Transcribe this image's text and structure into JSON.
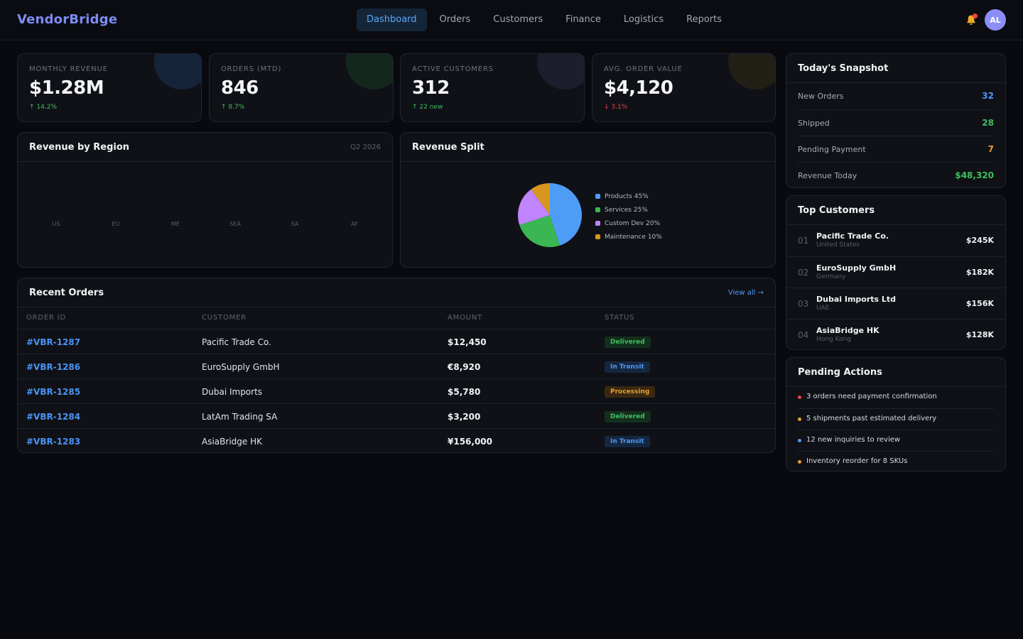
{
  "app": {
    "name": "VendorBridge"
  },
  "nav": {
    "items": [
      {
        "label": "Dashboard",
        "active": true
      },
      {
        "label": "Orders"
      },
      {
        "label": "Customers"
      },
      {
        "label": "Finance"
      },
      {
        "label": "Logistics"
      },
      {
        "label": "Reports"
      }
    ]
  },
  "user": {
    "initials": "AL"
  },
  "kpis": [
    {
      "label": "MONTHLY REVENUE",
      "value": "$1.28M",
      "change": "↑ 14.2%",
      "trend": "up",
      "accent": "#16243a"
    },
    {
      "label": "ORDERS (MTD)",
      "value": "846",
      "change": "↑ 8.7%",
      "trend": "up",
      "accent": "#14271d"
    },
    {
      "label": "ACTIVE CUSTOMERS",
      "value": "312",
      "change": "↑ 22 new",
      "trend": "up",
      "accent": "#1d1d2e"
    },
    {
      "label": "AVG. ORDER VALUE",
      "value": "$4,120",
      "change": "↓ 3.1%",
      "trend": "down",
      "accent": "#211f16"
    }
  ],
  "revenue_by_region": {
    "title": "Revenue by Region",
    "period": "Q2 2026",
    "regions": [
      "US",
      "EU",
      "ME",
      "SEA",
      "SA",
      "AF"
    ]
  },
  "revenue_split": {
    "title": "Revenue Split",
    "slices": [
      {
        "label": "Products 45%",
        "value": 45,
        "color": "#4f9cf7"
      },
      {
        "label": "Services 25%",
        "value": 25,
        "color": "#3ab652"
      },
      {
        "label": "Custom Dev 20%",
        "value": 20,
        "color": "#c084fc"
      },
      {
        "label": "Maintenance 10%",
        "value": 10,
        "color": "#d9961f"
      }
    ]
  },
  "recent_orders": {
    "title": "Recent Orders",
    "view_all": "View all →",
    "columns": [
      "ORDER ID",
      "CUSTOMER",
      "AMOUNT",
      "STATUS"
    ],
    "rows": [
      {
        "id": "#VBR-1287",
        "customer": "Pacific Trade Co.",
        "amount": "$12,450",
        "status": "Delivered",
        "status_type": "delivered"
      },
      {
        "id": "#VBR-1286",
        "customer": "EuroSupply GmbH",
        "amount": "€8,920",
        "status": "In Transit",
        "status_type": "transit"
      },
      {
        "id": "#VBR-1285",
        "customer": "Dubai Imports",
        "amount": "$5,780",
        "status": "Processing",
        "status_type": "processing"
      },
      {
        "id": "#VBR-1284",
        "customer": "LatAm Trading SA",
        "amount": "$3,200",
        "status": "Delivered",
        "status_type": "delivered"
      },
      {
        "id": "#VBR-1283",
        "customer": "AsiaBridge HK",
        "amount": "¥156,000",
        "status": "In Transit",
        "status_type": "transit"
      }
    ]
  },
  "snapshot": {
    "title": "Today's Snapshot",
    "items": [
      {
        "label": "New Orders",
        "value": "32",
        "color": "#4f97f4"
      },
      {
        "label": "Shipped",
        "value": "28",
        "color": "#3fbf5f"
      },
      {
        "label": "Pending Payment",
        "value": "7",
        "color": "#e99e2b"
      },
      {
        "label": "Revenue Today",
        "value": "$48,320",
        "color": "#3fbf5f"
      }
    ]
  },
  "top_customers": {
    "title": "Top Customers",
    "items": [
      {
        "rank": "01",
        "name": "Pacific Trade Co.",
        "country": "United States",
        "value": "$245K"
      },
      {
        "rank": "02",
        "name": "EuroSupply GmbH",
        "country": "Germany",
        "value": "$182K"
      },
      {
        "rank": "03",
        "name": "Dubai Imports Ltd",
        "country": "UAE",
        "value": "$156K"
      },
      {
        "rank": "04",
        "name": "AsiaBridge HK",
        "country": "Hong Kong",
        "value": "$128K"
      }
    ]
  },
  "pending_actions": {
    "title": "Pending Actions",
    "items": [
      {
        "text": "3 orders need payment confirmation",
        "color": "#ef4444"
      },
      {
        "text": "5 shipments past estimated delivery",
        "color": "#e99e2b"
      },
      {
        "text": "12 new inquiries to review",
        "color": "#4f97f4"
      },
      {
        "text": "Inventory reorder for 8 SKUs",
        "color": "#e99e2b"
      }
    ]
  }
}
